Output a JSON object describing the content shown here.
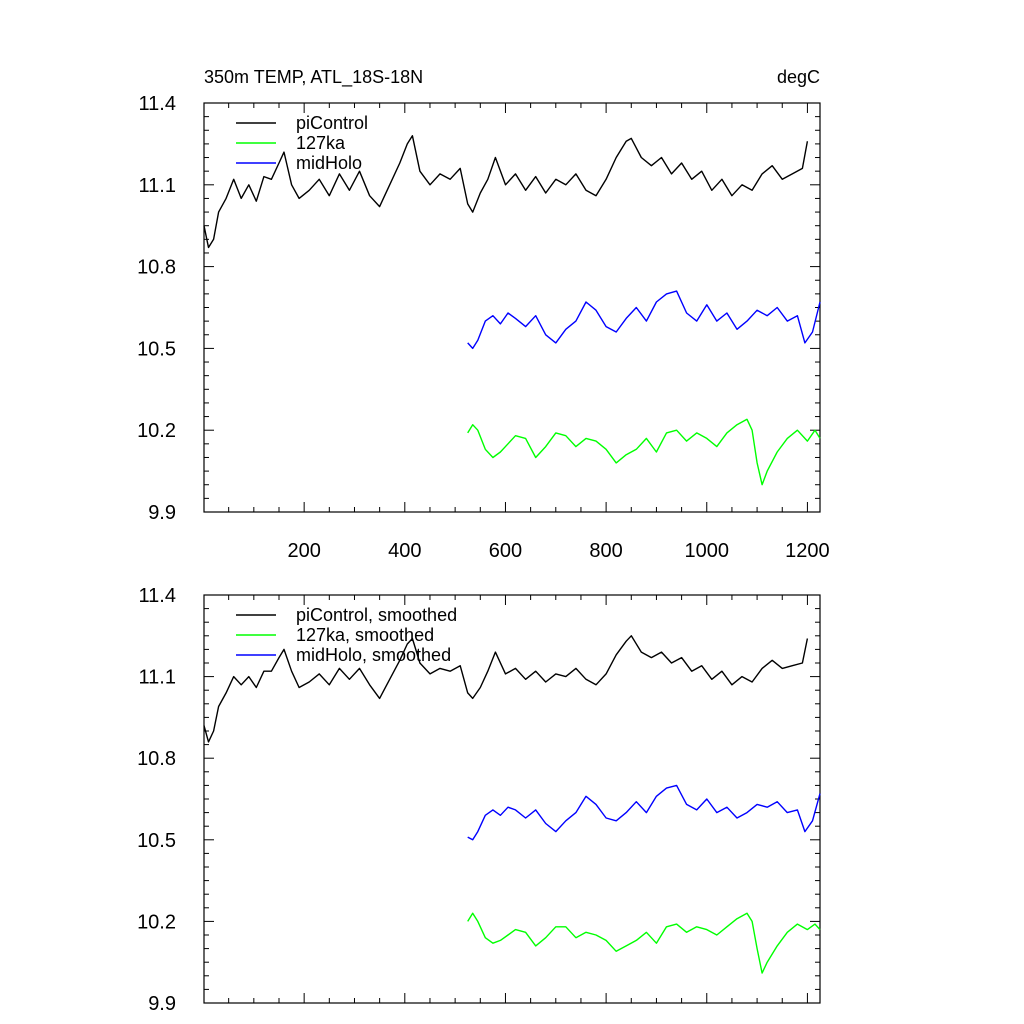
{
  "chart_data": [
    {
      "type": "line",
      "title": "350m TEMP, ATL_18S-18N",
      "units": "degC",
      "xlabel": "",
      "ylabel": "",
      "xlim": [
        1,
        1225
      ],
      "ylim": [
        9.9,
        11.4
      ],
      "x_ticks": [
        "200",
        "400",
        "600",
        "800",
        "1000",
        "1200"
      ],
      "y_ticks": [
        "9.9",
        "10.2",
        "10.5",
        "10.8",
        "11.1",
        "11.4"
      ],
      "grid": false,
      "legend_position": "top-left",
      "series": [
        {
          "name": "piControl",
          "color": "#000000",
          "x": [
            1,
            10,
            20,
            30,
            45,
            60,
            75,
            90,
            105,
            120,
            135,
            150,
            160,
            175,
            190,
            210,
            230,
            250,
            270,
            290,
            310,
            330,
            350,
            370,
            390,
            405,
            415,
            430,
            450,
            470,
            490,
            510,
            525,
            535,
            550,
            565,
            580,
            600,
            620,
            640,
            660,
            680,
            700,
            720,
            740,
            760,
            780,
            800,
            820,
            840,
            850,
            870,
            890,
            910,
            930,
            950,
            970,
            990,
            1010,
            1030,
            1050,
            1070,
            1090,
            1110,
            1130,
            1150,
            1170,
            1190,
            1200
          ],
          "y": [
            10.95,
            10.87,
            10.9,
            11.0,
            11.05,
            11.12,
            11.05,
            11.1,
            11.04,
            11.13,
            11.12,
            11.18,
            11.22,
            11.1,
            11.05,
            11.08,
            11.12,
            11.06,
            11.14,
            11.08,
            11.15,
            11.06,
            11.02,
            11.1,
            11.18,
            11.25,
            11.28,
            11.15,
            11.1,
            11.14,
            11.12,
            11.16,
            11.03,
            11.0,
            11.07,
            11.12,
            11.2,
            11.1,
            11.14,
            11.08,
            11.13,
            11.07,
            11.12,
            11.1,
            11.14,
            11.08,
            11.06,
            11.12,
            11.2,
            11.26,
            11.27,
            11.2,
            11.17,
            11.2,
            11.14,
            11.18,
            11.12,
            11.15,
            11.08,
            11.12,
            11.06,
            11.1,
            11.08,
            11.14,
            11.17,
            11.12,
            11.14,
            11.16,
            11.26
          ]
        },
        {
          "name": "127ka",
          "color": "#00ff00",
          "x": [
            525,
            535,
            545,
            560,
            575,
            590,
            605,
            620,
            640,
            660,
            680,
            700,
            720,
            740,
            760,
            780,
            800,
            820,
            840,
            860,
            880,
            900,
            920,
            940,
            960,
            980,
            1000,
            1020,
            1040,
            1060,
            1080,
            1090,
            1100,
            1110,
            1120,
            1140,
            1160,
            1180,
            1200,
            1215,
            1225
          ],
          "y": [
            10.19,
            10.22,
            10.2,
            10.13,
            10.1,
            10.12,
            10.15,
            10.18,
            10.17,
            10.1,
            10.14,
            10.19,
            10.18,
            10.14,
            10.17,
            10.16,
            10.13,
            10.08,
            10.11,
            10.13,
            10.17,
            10.12,
            10.19,
            10.2,
            10.16,
            10.19,
            10.17,
            10.14,
            10.19,
            10.22,
            10.24,
            10.2,
            10.08,
            10.0,
            10.05,
            10.12,
            10.17,
            10.2,
            10.16,
            10.2,
            10.17
          ]
        },
        {
          "name": "midHolo",
          "color": "#0000ff",
          "x": [
            525,
            535,
            545,
            560,
            575,
            590,
            605,
            620,
            640,
            660,
            680,
            700,
            720,
            740,
            760,
            780,
            800,
            820,
            840,
            860,
            880,
            900,
            920,
            940,
            960,
            980,
            1000,
            1020,
            1040,
            1060,
            1080,
            1100,
            1120,
            1140,
            1160,
            1180,
            1195,
            1210,
            1225
          ],
          "y": [
            10.52,
            10.5,
            10.53,
            10.6,
            10.62,
            10.59,
            10.63,
            10.61,
            10.58,
            10.62,
            10.55,
            10.52,
            10.57,
            10.6,
            10.67,
            10.64,
            10.58,
            10.56,
            10.61,
            10.65,
            10.6,
            10.67,
            10.7,
            10.71,
            10.63,
            10.6,
            10.66,
            10.6,
            10.63,
            10.57,
            10.6,
            10.64,
            10.62,
            10.65,
            10.6,
            10.62,
            10.52,
            10.56,
            10.67
          ]
        }
      ]
    },
    {
      "type": "line",
      "title": "",
      "xlabel": "",
      "ylabel": "",
      "xlim": [
        1,
        1225
      ],
      "ylim": [
        9.9,
        11.4
      ],
      "y_ticks": [
        "9.9",
        "10.2",
        "10.5",
        "10.8",
        "11.1",
        "11.4"
      ],
      "grid": false,
      "legend_position": "top-left",
      "series": [
        {
          "name": "piControl, smoothed",
          "color": "#000000",
          "x": [
            1,
            10,
            20,
            30,
            45,
            60,
            75,
            90,
            105,
            120,
            135,
            150,
            160,
            175,
            190,
            210,
            230,
            250,
            270,
            290,
            310,
            330,
            350,
            370,
            390,
            405,
            415,
            430,
            450,
            470,
            490,
            510,
            525,
            535,
            550,
            565,
            580,
            600,
            620,
            640,
            660,
            680,
            700,
            720,
            740,
            760,
            780,
            800,
            820,
            840,
            850,
            870,
            890,
            910,
            930,
            950,
            970,
            990,
            1010,
            1030,
            1050,
            1070,
            1090,
            1110,
            1130,
            1150,
            1170,
            1190,
            1200
          ],
          "y": [
            10.92,
            10.86,
            10.9,
            10.99,
            11.04,
            11.1,
            11.07,
            11.1,
            11.06,
            11.12,
            11.12,
            11.17,
            11.2,
            11.12,
            11.06,
            11.08,
            11.11,
            11.07,
            11.13,
            11.09,
            11.13,
            11.07,
            11.02,
            11.09,
            11.16,
            11.22,
            11.24,
            11.15,
            11.11,
            11.13,
            11.12,
            11.14,
            11.04,
            11.02,
            11.06,
            11.12,
            11.19,
            11.11,
            11.13,
            11.09,
            11.12,
            11.08,
            11.11,
            11.1,
            11.13,
            11.09,
            11.07,
            11.11,
            11.18,
            11.23,
            11.25,
            11.19,
            11.17,
            11.19,
            11.15,
            11.17,
            11.12,
            11.14,
            11.09,
            11.12,
            11.07,
            11.1,
            11.08,
            11.13,
            11.16,
            11.13,
            11.14,
            11.15,
            11.24
          ]
        },
        {
          "name": "127ka, smoothed",
          "color": "#00ff00",
          "x": [
            525,
            535,
            545,
            560,
            575,
            590,
            605,
            620,
            640,
            660,
            680,
            700,
            720,
            740,
            760,
            780,
            800,
            820,
            840,
            860,
            880,
            900,
            920,
            940,
            960,
            980,
            1000,
            1020,
            1040,
            1060,
            1080,
            1090,
            1100,
            1110,
            1120,
            1140,
            1160,
            1180,
            1200,
            1215,
            1225
          ],
          "y": [
            10.2,
            10.23,
            10.2,
            10.14,
            10.12,
            10.13,
            10.15,
            10.17,
            10.16,
            10.11,
            10.14,
            10.18,
            10.18,
            10.14,
            10.16,
            10.15,
            10.13,
            10.09,
            10.11,
            10.13,
            10.16,
            10.12,
            10.18,
            10.19,
            10.16,
            10.18,
            10.17,
            10.15,
            10.18,
            10.21,
            10.23,
            10.2,
            10.1,
            10.01,
            10.05,
            10.11,
            10.16,
            10.19,
            10.17,
            10.19,
            10.17
          ]
        },
        {
          "name": "midHolo, smoothed",
          "color": "#0000ff",
          "x": [
            525,
            535,
            545,
            560,
            575,
            590,
            605,
            620,
            640,
            660,
            680,
            700,
            720,
            740,
            760,
            780,
            800,
            820,
            840,
            860,
            880,
            900,
            920,
            940,
            960,
            980,
            1000,
            1020,
            1040,
            1060,
            1080,
            1100,
            1120,
            1140,
            1160,
            1180,
            1195,
            1210,
            1225
          ],
          "y": [
            10.51,
            10.5,
            10.53,
            10.59,
            10.61,
            10.59,
            10.62,
            10.61,
            10.58,
            10.61,
            10.56,
            10.53,
            10.57,
            10.6,
            10.66,
            10.63,
            10.58,
            10.57,
            10.6,
            10.64,
            10.6,
            10.66,
            10.69,
            10.7,
            10.63,
            10.61,
            10.65,
            10.6,
            10.62,
            10.58,
            10.6,
            10.63,
            10.62,
            10.64,
            10.6,
            10.61,
            10.53,
            10.57,
            10.67
          ]
        }
      ]
    }
  ]
}
